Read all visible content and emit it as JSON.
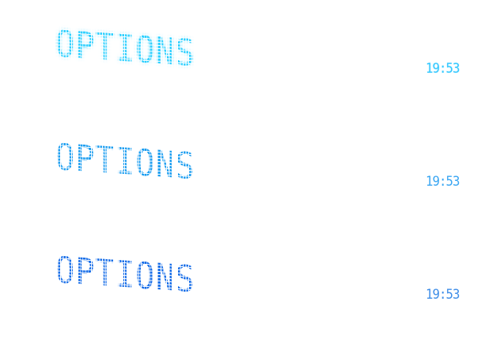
{
  "panels": [
    {
      "title": "OPTIONS",
      "clock": "19:53",
      "theme": "cyan-glow",
      "title_color": "#2fd0ff",
      "clock_color": "#33c8ff"
    },
    {
      "title": "OPTIONS",
      "clock": "19:53",
      "theme": "sky-blue",
      "title_color": "#1f9ff0",
      "clock_color": "#3aa6f2"
    },
    {
      "title": "OPTIONS",
      "clock": "19:53",
      "theme": "royal-blue",
      "title_color": "#1a6fe8",
      "clock_color": "#3f8ee8"
    }
  ]
}
